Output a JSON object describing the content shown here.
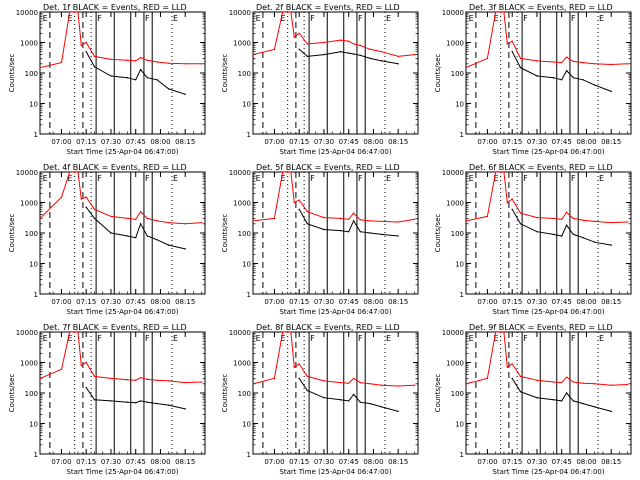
{
  "figure": {
    "x_tick_labels": [
      "07:00",
      "07:15",
      "07:30",
      "07:45",
      "08:00",
      "08:15"
    ],
    "y_tick_labels": [
      "1",
      "10",
      "100",
      "1000",
      "10000"
    ],
    "ylabel": "Counts/sec",
    "xlabel": "Start Time (25-Apr-04 06:47:00)",
    "colors": {
      "events": "#000000",
      "lld": "#ff0000",
      "axes": "#000000"
    }
  },
  "chart_data": [
    {
      "type": "line",
      "title": "Det. 1f BLACK = Events, RED = LLD",
      "panel_markers": [
        "E",
        "E",
        "F",
        "F",
        "E"
      ],
      "ylim": [
        1,
        10000
      ],
      "yscale": "log",
      "grid": false,
      "x": [
        "06:47",
        "07:00",
        "07:05",
        "07:08",
        "07:10",
        "07:12",
        "07:15",
        "07:20",
        "07:30",
        "07:40",
        "07:45",
        "07:48",
        "07:52",
        "07:58",
        "08:05",
        "08:15",
        "08:25"
      ],
      "series": [
        {
          "name": "BLACK = Events",
          "values": [
            null,
            null,
            null,
            null,
            null,
            null,
            500,
            160,
            80,
            70,
            60,
            130,
            70,
            60,
            30,
            20,
            null
          ]
        },
        {
          "name": "RED = LLD",
          "values": [
            150,
            220,
            10000,
            10000,
            10000,
            800,
            1000,
            350,
            280,
            260,
            250,
            320,
            260,
            230,
            210,
            200,
            200
          ]
        }
      ]
    },
    {
      "type": "line",
      "title": "Det. 2f BLACK = Events, RED = LLD",
      "panel_markers": [
        "E",
        "E",
        "F",
        "F",
        "E"
      ],
      "ylim": [
        1,
        10000
      ],
      "yscale": "log",
      "grid": false,
      "x": [
        "06:47",
        "07:00",
        "07:05",
        "07:08",
        "07:10",
        "07:12",
        "07:15",
        "07:20",
        "07:30",
        "07:40",
        "07:45",
        "07:48",
        "07:52",
        "07:58",
        "08:05",
        "08:15",
        "08:25"
      ],
      "series": [
        {
          "name": "BLACK = Events",
          "values": [
            null,
            null,
            null,
            null,
            null,
            null,
            600,
            350,
            400,
            500,
            450,
            420,
            380,
            300,
            250,
            200,
            null
          ]
        },
        {
          "name": "RED = LLD",
          "values": [
            400,
            600,
            10000,
            10000,
            10000,
            1500,
            2000,
            900,
            1000,
            1200,
            1100,
            900,
            800,
            600,
            500,
            350,
            400
          ]
        }
      ]
    },
    {
      "type": "line",
      "title": "Det. 3f BLACK = Events, RED = LLD",
      "panel_markers": [
        "E",
        "E",
        "F",
        "F",
        "E"
      ],
      "ylim": [
        1,
        10000
      ],
      "yscale": "log",
      "grid": false,
      "x": [
        "06:47",
        "07:00",
        "07:05",
        "07:08",
        "07:10",
        "07:12",
        "07:15",
        "07:20",
        "07:30",
        "07:40",
        "07:45",
        "07:48",
        "07:52",
        "07:58",
        "08:05",
        "08:15",
        "08:25"
      ],
      "series": [
        {
          "name": "BLACK = Events",
          "values": [
            null,
            null,
            null,
            null,
            null,
            null,
            500,
            150,
            80,
            70,
            60,
            120,
            70,
            60,
            40,
            25,
            null
          ]
        },
        {
          "name": "RED = LLD",
          "values": [
            150,
            300,
            10000,
            10000,
            10000,
            900,
            1100,
            300,
            250,
            230,
            220,
            330,
            240,
            220,
            200,
            190,
            200
          ]
        }
      ]
    },
    {
      "type": "line",
      "title": "Det. 4f BLACK = Events, RED = LLD",
      "panel_markers": [
        "E",
        "E",
        "F",
        "F",
        "E"
      ],
      "ylim": [
        1,
        10000
      ],
      "yscale": "log",
      "grid": false,
      "x": [
        "06:47",
        "07:00",
        "07:05",
        "07:08",
        "07:10",
        "07:12",
        "07:15",
        "07:20",
        "07:30",
        "07:40",
        "07:45",
        "07:48",
        "07:52",
        "07:58",
        "08:05",
        "08:15",
        "08:25"
      ],
      "series": [
        {
          "name": "BLACK = Events",
          "values": [
            null,
            null,
            null,
            null,
            null,
            null,
            700,
            300,
            100,
            80,
            70,
            200,
            80,
            60,
            40,
            30,
            null
          ]
        },
        {
          "name": "RED = LLD",
          "values": [
            300,
            1500,
            10000,
            10000,
            10000,
            1300,
            1500,
            600,
            350,
            300,
            280,
            500,
            300,
            250,
            220,
            200,
            220
          ]
        }
      ]
    },
    {
      "type": "line",
      "title": "Det. 5f BLACK = Events, RED = LLD",
      "panel_markers": [
        "E",
        "E",
        "F",
        "F",
        "E"
      ],
      "ylim": [
        1,
        10000
      ],
      "yscale": "log",
      "grid": false,
      "x": [
        "06:47",
        "07:00",
        "07:05",
        "07:08",
        "07:10",
        "07:12",
        "07:15",
        "07:20",
        "07:30",
        "07:40",
        "07:45",
        "07:48",
        "07:52",
        "07:58",
        "08:05",
        "08:15",
        "08:25"
      ],
      "series": [
        {
          "name": "BLACK = Events",
          "values": [
            null,
            null,
            null,
            null,
            null,
            null,
            600,
            200,
            130,
            120,
            110,
            250,
            110,
            100,
            90,
            80,
            null
          ]
        },
        {
          "name": "RED = LLD",
          "values": [
            250,
            300,
            10000,
            10000,
            10000,
            1000,
            1200,
            500,
            320,
            300,
            280,
            450,
            270,
            250,
            240,
            230,
            280
          ]
        }
      ]
    },
    {
      "type": "line",
      "title": "Det. 6f BLACK = Events, RED = LLD",
      "panel_markers": [
        "E",
        "E",
        "F",
        "F",
        "E"
      ],
      "ylim": [
        1,
        10000
      ],
      "yscale": "log",
      "grid": false,
      "x": [
        "06:47",
        "07:00",
        "07:05",
        "07:08",
        "07:10",
        "07:12",
        "07:15",
        "07:20",
        "07:30",
        "07:40",
        "07:45",
        "07:48",
        "07:52",
        "07:58",
        "08:05",
        "08:15",
        "08:25"
      ],
      "series": [
        {
          "name": "BLACK = Events",
          "values": [
            null,
            null,
            null,
            null,
            null,
            null,
            600,
            200,
            110,
            90,
            80,
            180,
            90,
            70,
            50,
            40,
            null
          ]
        },
        {
          "name": "RED = LLD",
          "values": [
            250,
            350,
            10000,
            10000,
            10000,
            1000,
            1300,
            450,
            320,
            300,
            280,
            480,
            300,
            260,
            240,
            220,
            230
          ]
        }
      ]
    },
    {
      "type": "line",
      "title": "Det. 7f BLACK = Events, RED = LLD",
      "panel_markers": [
        "E",
        "E",
        "F",
        "F",
        "E"
      ],
      "ylim": [
        1,
        10000
      ],
      "yscale": "log",
      "grid": false,
      "x": [
        "06:47",
        "07:00",
        "07:05",
        "07:08",
        "07:10",
        "07:12",
        "07:15",
        "07:20",
        "07:30",
        "07:40",
        "07:45",
        "07:48",
        "07:52",
        "07:58",
        "08:05",
        "08:15",
        "08:25"
      ],
      "series": [
        {
          "name": "BLACK = Events",
          "values": [
            null,
            null,
            null,
            null,
            null,
            null,
            150,
            60,
            55,
            50,
            48,
            55,
            50,
            45,
            40,
            30,
            null
          ]
        },
        {
          "name": "RED = LLD",
          "values": [
            300,
            600,
            10000,
            10000,
            10000,
            800,
            1000,
            350,
            300,
            270,
            260,
            320,
            280,
            260,
            250,
            220,
            230
          ]
        }
      ]
    },
    {
      "type": "line",
      "title": "Det. 8f BLACK = Events, RED = LLD",
      "panel_markers": [
        "E",
        "E",
        "F",
        "F",
        "E"
      ],
      "ylim": [
        1,
        10000
      ],
      "yscale": "log",
      "grid": false,
      "x": [
        "06:47",
        "07:00",
        "07:05",
        "07:08",
        "07:10",
        "07:12",
        "07:15",
        "07:20",
        "07:30",
        "07:40",
        "07:45",
        "07:48",
        "07:52",
        "07:58",
        "08:05",
        "08:15",
        "08:25"
      ],
      "series": [
        {
          "name": "BLACK = Events",
          "values": [
            null,
            null,
            null,
            null,
            null,
            null,
            300,
            120,
            70,
            60,
            55,
            90,
            50,
            45,
            35,
            25,
            null
          ]
        },
        {
          "name": "RED = LLD",
          "values": [
            200,
            300,
            10000,
            10000,
            10000,
            700,
            900,
            350,
            250,
            220,
            210,
            300,
            220,
            200,
            180,
            170,
            180
          ]
        }
      ]
    },
    {
      "type": "line",
      "title": "Det. 9f BLACK = Events, RED = LLD",
      "panel_markers": [
        "E",
        "E",
        "F",
        "F",
        "E"
      ],
      "ylim": [
        1,
        10000
      ],
      "yscale": "log",
      "grid": false,
      "x": [
        "06:47",
        "07:00",
        "07:05",
        "07:08",
        "07:10",
        "07:12",
        "07:15",
        "07:20",
        "07:30",
        "07:40",
        "07:45",
        "07:48",
        "07:52",
        "07:58",
        "08:05",
        "08:15",
        "08:25"
      ],
      "series": [
        {
          "name": "BLACK = Events",
          "values": [
            null,
            null,
            null,
            null,
            null,
            null,
            300,
            110,
            70,
            60,
            55,
            100,
            55,
            45,
            35,
            25,
            null
          ]
        },
        {
          "name": "RED = LLD",
          "values": [
            200,
            300,
            10000,
            10000,
            10000,
            700,
            900,
            350,
            260,
            230,
            220,
            330,
            230,
            210,
            200,
            180,
            190
          ]
        }
      ]
    }
  ]
}
